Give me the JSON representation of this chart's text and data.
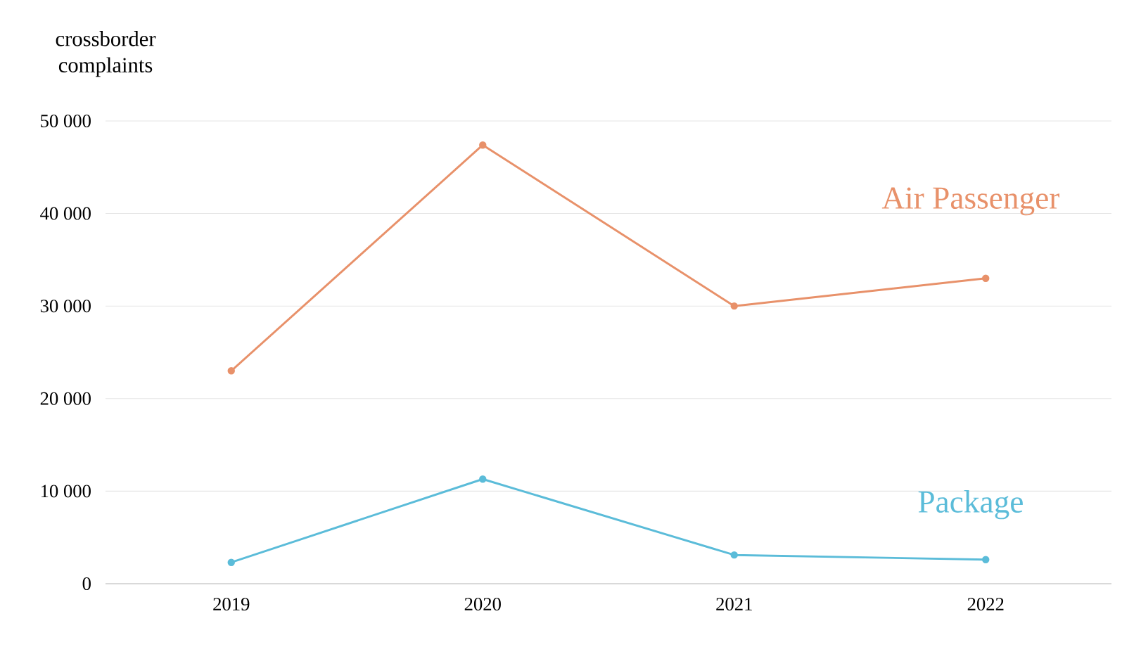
{
  "chart_data": {
    "type": "line",
    "ylabel": "crossborder complaints",
    "categories": [
      "2019",
      "2020",
      "2021",
      "2022"
    ],
    "series": [
      {
        "name": "Air Passenger",
        "color": "#e8916a",
        "values": [
          23000,
          47400,
          30000,
          33000
        ]
      },
      {
        "name": "Package",
        "color": "#5bbcd9",
        "values": [
          2300,
          11300,
          3100,
          2600
        ]
      }
    ],
    "ylim": [
      0,
      50000
    ],
    "yticks": [
      0,
      {
        "value": 10000,
        "label": "10 000"
      },
      {
        "value": 20000,
        "label": "20 000"
      },
      {
        "value": 30000,
        "label": "30 000"
      },
      {
        "value": 40000,
        "label": "40 000"
      },
      {
        "value": 50000,
        "label": "50 000"
      }
    ],
    "grid": "y",
    "legend": false,
    "marker": "circle",
    "line_style": "solid"
  }
}
